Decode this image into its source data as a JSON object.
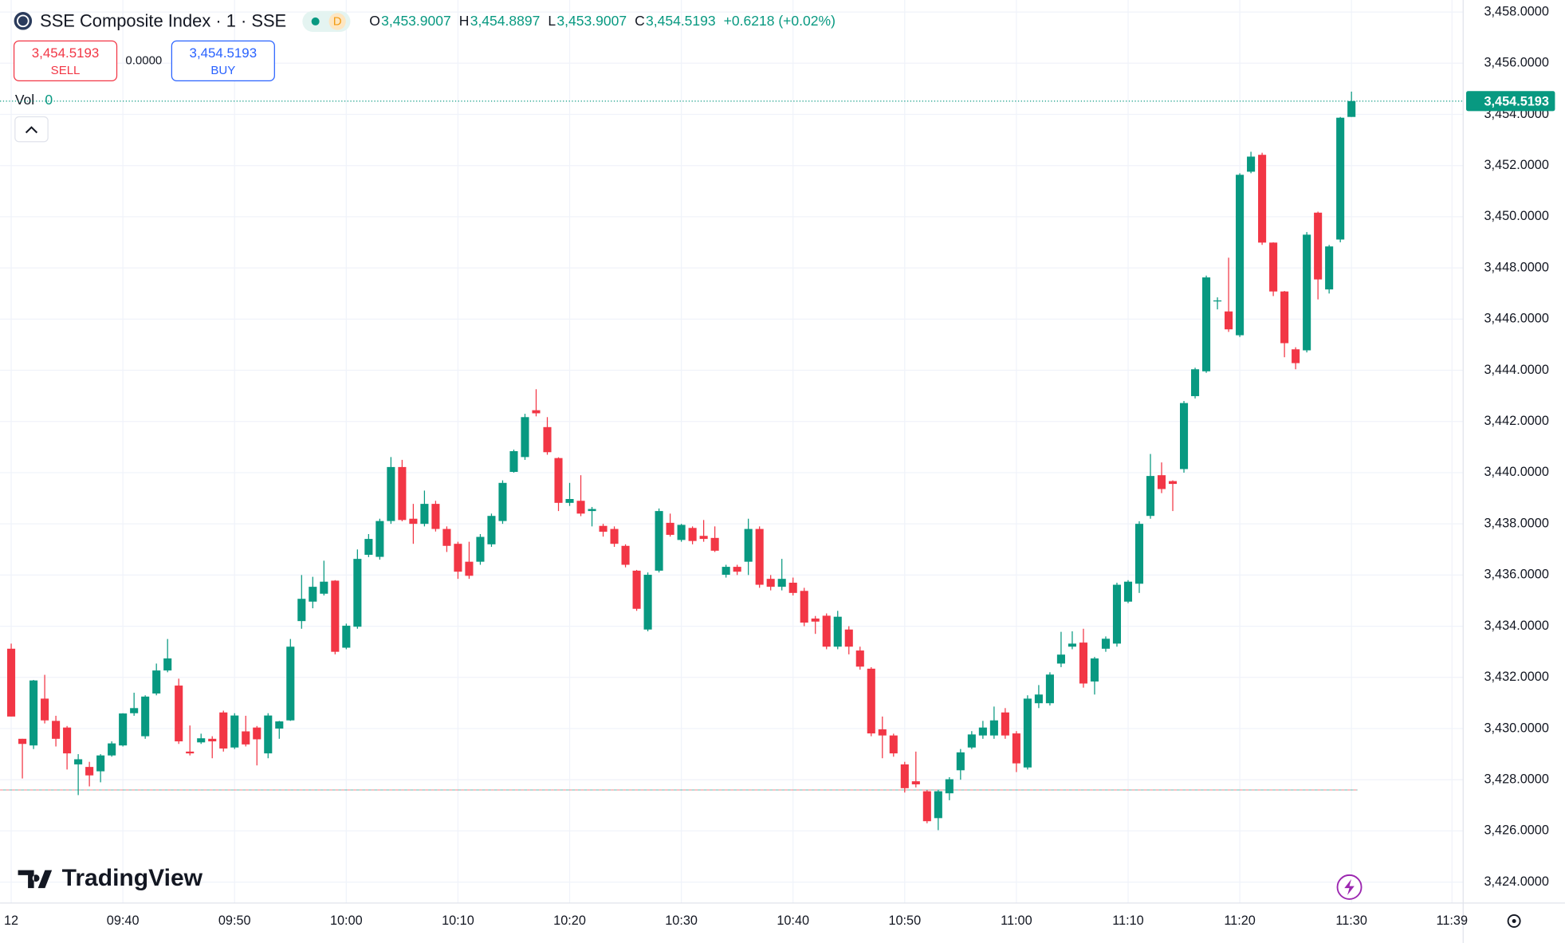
{
  "header": {
    "symbol_title": "SSE Composite Index · 1 · SSE",
    "badge": "D",
    "ohlc": [
      {
        "label": "O",
        "value": "3,453.9007"
      },
      {
        "label": "H",
        "value": "3,454.8897"
      },
      {
        "label": "L",
        "value": "3,453.9007"
      },
      {
        "label": "C",
        "value": "3,454.5193"
      }
    ],
    "change": "+0.6218 (+0.02%)"
  },
  "trade": {
    "sell_price": "3,454.5193",
    "sell_label": "SELL",
    "spread": "0.0000",
    "buy_price": "3,454.5193",
    "buy_label": "BUY"
  },
  "volume": {
    "label": "Vol",
    "value": "0"
  },
  "last_price_label": "3,454.5193",
  "brand": "TradingView",
  "chart_data": {
    "type": "candlestick",
    "up_color": "#089981",
    "down_color": "#f23645",
    "grid": true,
    "x": [
      "09:30",
      "09:31",
      "09:32",
      "09:33",
      "09:34",
      "09:35",
      "09:36",
      "09:37",
      "09:38",
      "09:39",
      "09:40",
      "09:41",
      "09:42",
      "09:43",
      "09:44",
      "09:45",
      "09:46",
      "09:47",
      "09:48",
      "09:49",
      "09:50",
      "09:51",
      "09:52",
      "09:53",
      "09:54",
      "09:55",
      "09:56",
      "09:57",
      "09:58",
      "09:59",
      "10:00",
      "10:01",
      "10:02",
      "10:03",
      "10:04",
      "10:05",
      "10:06",
      "10:07",
      "10:08",
      "10:09",
      "10:10",
      "10:11",
      "10:12",
      "10:13",
      "10:14",
      "10:15",
      "10:16",
      "10:17",
      "10:18",
      "10:19",
      "10:20",
      "10:21",
      "10:22",
      "10:23",
      "10:24",
      "10:25",
      "10:26",
      "10:27",
      "10:28",
      "10:29",
      "10:30",
      "10:31",
      "10:32",
      "10:33",
      "10:34",
      "10:35",
      "10:36",
      "10:37",
      "10:38",
      "10:39",
      "10:40",
      "10:41",
      "10:42",
      "10:43",
      "10:44",
      "10:45",
      "10:46",
      "10:47",
      "10:48",
      "10:49",
      "10:50",
      "10:51",
      "10:52",
      "10:53",
      "10:54",
      "10:55",
      "10:56",
      "10:57",
      "10:58",
      "10:59",
      "11:00",
      "11:01",
      "11:02",
      "11:03",
      "11:04",
      "11:05",
      "11:06",
      "11:07",
      "11:08",
      "11:09",
      "11:10",
      "11:11",
      "11:12",
      "11:13",
      "11:14",
      "11:15",
      "11:16",
      "11:17",
      "11:18",
      "11:19",
      "11:20",
      "11:21",
      "11:22",
      "11:23",
      "11:24",
      "11:25",
      "11:26",
      "11:27",
      "11:28",
      "11:29",
      "11:30"
    ],
    "open": [
      3433.12,
      3429.6,
      3429.34,
      3431.17,
      3430.3,
      3430.04,
      3428.6,
      3428.5,
      3428.33,
      3428.95,
      3429.34,
      3430.6,
      3429.7,
      3431.37,
      3432.27,
      3431.68,
      3429.1,
      3429.46,
      3429.6,
      3430.63,
      3429.26,
      3429.89,
      3430.04,
      3429.03,
      3430.0,
      3430.32,
      3434.2,
      3434.96,
      3435.27,
      3435.78,
      3433.16,
      3433.98,
      3436.79,
      3436.71,
      3438.11,
      3440.22,
      3438.2,
      3438.0,
      3438.78,
      3437.8,
      3437.22,
      3436.52,
      3436.52,
      3437.2,
      3438.11,
      3440.03,
      3440.61,
      3442.44,
      3441.78,
      3440.57,
      3438.82,
      3438.9,
      3438.5,
      3437.92,
      3437.8,
      3437.14,
      3436.17,
      3433.87,
      3436.17,
      3438.04,
      3437.37,
      3437.84,
      3437.53,
      3437.45,
      3436.01,
      3436.32,
      3436.52,
      3437.8,
      3435.85,
      3435.54,
      3435.7,
      3435.38,
      3434.3,
      3434.41,
      3433.2,
      3433.87,
      3433.05,
      3432.34,
      3429.97,
      3429.73,
      3428.6,
      3427.94,
      3427.55,
      3426.5,
      3427.47,
      3428.37,
      3429.26,
      3429.73,
      3429.73,
      3430.63,
      3429.81,
      3428.48,
      3430.99,
      3430.99,
      3432.54,
      3433.2,
      3433.36,
      3431.84,
      3433.12,
      3433.32,
      3434.96,
      3435.66,
      3438.31,
      3439.9,
      3439.67,
      3440.14,
      3442.99,
      3443.96,
      3446.7,
      3446.3,
      3445.37,
      3451.76,
      3452.42,
      3448.99,
      3447.08,
      3444.82,
      3444.78,
      3450.16,
      3447.16,
      3449.11,
      3453.9007
    ],
    "high": [
      3433.32,
      3429.6,
      3431.9,
      3432.1,
      3430.5,
      3430.1,
      3429.0,
      3428.7,
      3429.0,
      3429.5,
      3430.6,
      3431.4,
      3431.3,
      3432.54,
      3433.5,
      3431.95,
      3430.12,
      3429.8,
      3429.7,
      3430.7,
      3430.6,
      3430.5,
      3430.1,
      3430.6,
      3430.3,
      3433.5,
      3436.0,
      3435.93,
      3436.56,
      3435.8,
      3434.1,
      3437.0,
      3437.6,
      3438.2,
      3440.61,
      3440.5,
      3438.78,
      3439.3,
      3438.9,
      3437.9,
      3437.3,
      3437.3,
      3437.6,
      3438.4,
      3439.7,
      3440.9,
      3442.3,
      3443.26,
      3442.17,
      3440.6,
      3439.6,
      3439.9,
      3438.66,
      3438.0,
      3437.9,
      3437.2,
      3436.2,
      3436.1,
      3438.6,
      3438.4,
      3438.0,
      3437.9,
      3438.15,
      3437.9,
      3436.4,
      3436.4,
      3438.2,
      3437.9,
      3436.0,
      3436.63,
      3435.9,
      3435.5,
      3434.4,
      3434.5,
      3434.6,
      3434.0,
      3433.2,
      3432.4,
      3430.47,
      3429.8,
      3428.7,
      3429.1,
      3427.6,
      3427.6,
      3428.1,
      3429.2,
      3429.9,
      3430.3,
      3430.86,
      3430.8,
      3429.9,
      3431.3,
      3431.7,
      3432.2,
      3433.78,
      3433.8,
      3433.9,
      3432.8,
      3433.6,
      3435.7,
      3435.8,
      3438.1,
      3440.73,
      3440.4,
      3439.7,
      3442.8,
      3444.1,
      3447.7,
      3446.85,
      3448.4,
      3451.7,
      3452.54,
      3452.5,
      3449.0,
      3447.1,
      3444.9,
      3449.4,
      3450.2,
      3448.9,
      3453.9,
      3454.8897
    ],
    "low": [
      3430.47,
      3428.05,
      3429.2,
      3430.2,
      3429.3,
      3428.4,
      3427.4,
      3427.74,
      3427.9,
      3428.9,
      3429.3,
      3430.5,
      3429.6,
      3431.3,
      3432.2,
      3429.4,
      3428.95,
      3429.4,
      3428.84,
      3429.1,
      3429.2,
      3429.3,
      3428.56,
      3428.84,
      3429.6,
      3430.3,
      3433.9,
      3434.7,
      3435.2,
      3432.9,
      3433.1,
      3433.9,
      3436.7,
      3436.6,
      3438.0,
      3438.1,
      3437.22,
      3437.9,
      3437.7,
      3436.9,
      3435.85,
      3435.85,
      3436.4,
      3437.1,
      3438.0,
      3440.0,
      3440.5,
      3442.2,
      3440.7,
      3438.5,
      3438.7,
      3438.3,
      3437.9,
      3437.5,
      3437.1,
      3436.3,
      3434.6,
      3433.8,
      3436.1,
      3437.5,
      3437.3,
      3437.2,
      3437.3,
      3436.9,
      3435.9,
      3436.0,
      3436.0,
      3435.5,
      3435.4,
      3435.4,
      3435.2,
      3434.0,
      3433.7,
      3433.1,
      3433.1,
      3432.9,
      3432.3,
      3429.7,
      3428.84,
      3428.9,
      3427.5,
      3427.7,
      3426.3,
      3426.03,
      3427.2,
      3428.0,
      3429.2,
      3429.6,
      3429.6,
      3429.6,
      3428.3,
      3428.4,
      3430.8,
      3430.9,
      3432.4,
      3433.1,
      3431.6,
      3431.33,
      3433.0,
      3433.2,
      3434.9,
      3435.3,
      3438.2,
      3439.2,
      3438.5,
      3440.0,
      3442.9,
      3443.9,
      3446.38,
      3445.5,
      3445.3,
      3451.7,
      3448.9,
      3446.9,
      3444.51,
      3444.04,
      3444.7,
      3446.77,
      3447.0,
      3449.0,
      3453.9007
    ],
    "close": [
      3430.47,
      3429.4,
      3431.88,
      3430.32,
      3429.6,
      3429.03,
      3428.8,
      3428.17,
      3428.95,
      3429.42,
      3430.59,
      3430.8,
      3431.25,
      3432.27,
      3432.74,
      3429.5,
      3429.03,
      3429.62,
      3429.5,
      3429.22,
      3430.51,
      3429.38,
      3429.58,
      3430.51,
      3430.28,
      3433.2,
      3435.07,
      3435.54,
      3435.74,
      3433.0,
      3434.02,
      3436.63,
      3437.41,
      3438.11,
      3440.22,
      3438.15,
      3438.0,
      3438.78,
      3437.8,
      3437.14,
      3436.13,
      3435.97,
      3437.49,
      3438.31,
      3439.6,
      3440.84,
      3442.17,
      3442.32,
      3440.8,
      3438.82,
      3438.97,
      3438.4,
      3438.58,
      3437.69,
      3437.22,
      3436.4,
      3434.68,
      3436.01,
      3438.5,
      3437.57,
      3437.96,
      3437.33,
      3437.41,
      3436.95,
      3436.32,
      3436.13,
      3437.8,
      3435.62,
      3435.54,
      3435.85,
      3435.3,
      3434.14,
      3434.18,
      3433.2,
      3434.37,
      3433.2,
      3432.42,
      3429.81,
      3429.73,
      3429.03,
      3427.67,
      3427.82,
      3426.38,
      3427.55,
      3428.02,
      3429.07,
      3429.77,
      3430.04,
      3430.32,
      3429.73,
      3428.64,
      3431.17,
      3431.33,
      3432.11,
      3432.89,
      3433.32,
      3431.76,
      3432.74,
      3433.51,
      3435.62,
      3435.74,
      3438.0,
      3439.87,
      3439.36,
      3439.56,
      3442.72,
      3444.04,
      3447.63,
      3446.73,
      3445.6,
      3451.64,
      3452.35,
      3448.99,
      3447.08,
      3445.06,
      3444.28,
      3449.3,
      3447.55,
      3448.84,
      3453.87,
      3454.5193
    ],
    "reference_line": 3427.6,
    "xlim": [
      "09:29",
      "11:40"
    ],
    "xticks": [
      {
        "value": "09:30",
        "label": "12"
      },
      "09:40",
      "09:50",
      "10:00",
      "10:10",
      "10:20",
      "10:30",
      "10:40",
      "10:50",
      "11:00",
      "11:10",
      "11:20",
      "11:30",
      "11:39"
    ],
    "ylim": [
      3423.18,
      3458.47
    ],
    "yticks": [
      {
        "value": 3424,
        "label": "3,424.0000"
      },
      {
        "value": 3426,
        "label": "3,426.0000"
      },
      {
        "value": 3428,
        "label": "3,428.0000"
      },
      {
        "value": 3430,
        "label": "3,430.0000"
      },
      {
        "value": 3432,
        "label": "3,432.0000"
      },
      {
        "value": 3434,
        "label": "3,434.0000"
      },
      {
        "value": 3436,
        "label": "3,436.0000"
      },
      {
        "value": 3438,
        "label": "3,438.0000"
      },
      {
        "value": 3440,
        "label": "3,440.0000"
      },
      {
        "value": 3442,
        "label": "3,442.0000"
      },
      {
        "value": 3444,
        "label": "3,444.0000"
      },
      {
        "value": 3446,
        "label": "3,446.0000"
      },
      {
        "value": 3448,
        "label": "3,448.0000"
      },
      {
        "value": 3450,
        "label": "3,450.0000"
      },
      {
        "value": 3452,
        "label": "3,452.0000"
      },
      {
        "value": 3454,
        "label": "3,454.0000"
      },
      {
        "value": 3456,
        "label": "3,456.0000"
      },
      {
        "value": 3458,
        "label": "3,458.0000"
      }
    ]
  }
}
